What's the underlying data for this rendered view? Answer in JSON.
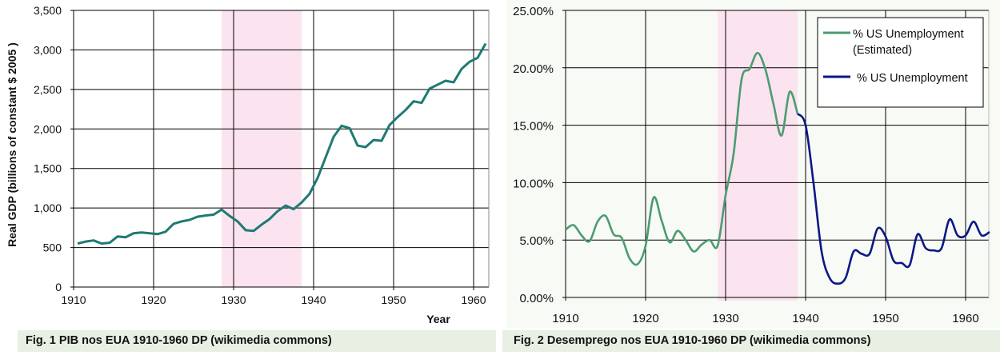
{
  "captions": {
    "fig1": "Fig. 1 PIB nos EUA 1910-1960 DP (wikimedia commons)",
    "fig2": "Fig. 2 Desemprego nos EUA 1910-1960 DP (wikimedia commons)"
  },
  "colors": {
    "gdp_line": "#1f7a72",
    "estimated_line": "#4b9c70",
    "actual_line": "#0b1787",
    "shading": "#fbe3f0",
    "chart2_bg": "#f8fbf5"
  },
  "chart_data": [
    {
      "type": "line",
      "title": "",
      "xlabel": "Year",
      "ylabel": "Real GDP (billions of constant $ 2005 )",
      "xlim": [
        1910,
        1962
      ],
      "ylim": [
        0,
        3500
      ],
      "xticks": [
        "1910",
        "1920",
        "1930",
        "1940",
        "1950",
        "1960"
      ],
      "yticks": [
        "0",
        "500",
        "1,000",
        "1,500",
        "2,000",
        "2,500",
        "3,000",
        "3,500"
      ],
      "grid": true,
      "shaded_region": [
        1928.5,
        1938.5
      ],
      "series": [
        {
          "x": [
            1910,
            1911,
            1912,
            1913,
            1914,
            1915,
            1916,
            1917,
            1918,
            1919,
            1920,
            1921,
            1922,
            1923,
            1924,
            1925,
            1926,
            1927,
            1928,
            1929,
            1930,
            1931,
            1932,
            1933,
            1934,
            1935,
            1936,
            1937,
            1938,
            1939,
            1940,
            1941,
            1942,
            1943,
            1944,
            1945,
            1946,
            1947,
            1948,
            1949,
            1950,
            1951,
            1952,
            1953,
            1954,
            1955,
            1956,
            1957,
            1958,
            1959,
            1960,
            1961
          ],
          "values": [
            550,
            575,
            590,
            550,
            560,
            640,
            630,
            680,
            690,
            680,
            670,
            700,
            800,
            830,
            850,
            890,
            905,
            915,
            980,
            900,
            830,
            720,
            710,
            790,
            860,
            960,
            1030,
            985,
            1070,
            1180,
            1380,
            1640,
            1900,
            2040,
            2010,
            1790,
            1770,
            1860,
            1850,
            2050,
            2150,
            2240,
            2350,
            2330,
            2510,
            2560,
            2610,
            2590,
            2760,
            2850,
            2900,
            3080
          ]
        }
      ]
    },
    {
      "type": "line",
      "title": "",
      "xlim": [
        1910,
        1963
      ],
      "ylim": [
        0,
        25
      ],
      "xticks": [
        "1910",
        "1920",
        "1930",
        "1940",
        "1950",
        "1960"
      ],
      "yticks": [
        "0.00%",
        "5.00%",
        "10.00%",
        "15.00%",
        "20.00%",
        "25.00%"
      ],
      "grid": true,
      "legend": "top-right",
      "shaded_region": [
        1929,
        1939
      ],
      "series": [
        {
          "name": "% US Unemployment (Estimated)",
          "name_line1": "% US Unemployment",
          "name_line2": "(Estimated)",
          "x": [
            1910,
            1911,
            1912,
            1913,
            1914,
            1915,
            1916,
            1917,
            1918,
            1919,
            1920,
            1921,
            1922,
            1923,
            1924,
            1925,
            1926,
            1927,
            1928,
            1929,
            1930,
            1931,
            1932,
            1933,
            1934,
            1935,
            1936,
            1937,
            1938,
            1939
          ],
          "values": [
            5.9,
            6.3,
            5.4,
            4.9,
            6.6,
            7.1,
            5.5,
            5.2,
            3.4,
            2.9,
            4.5,
            8.7,
            6.7,
            4.8,
            5.8,
            5.0,
            4.0,
            4.6,
            5.0,
            4.5,
            8.9,
            12.5,
            19.0,
            19.9,
            21.3,
            19.8,
            16.8,
            14.1,
            17.9,
            16.0
          ]
        },
        {
          "name": "% US Unemployment",
          "x": [
            1939,
            1940,
            1941,
            1942,
            1943,
            1944,
            1945,
            1946,
            1947,
            1948,
            1949,
            1950,
            1951,
            1952,
            1953,
            1954,
            1955,
            1956,
            1957,
            1958,
            1959,
            1960,
            1961,
            1962,
            1963
          ],
          "values": [
            16.0,
            15.0,
            9.9,
            4.0,
            1.7,
            1.2,
            1.7,
            4.0,
            3.8,
            3.8,
            6.0,
            5.3,
            3.2,
            3.0,
            2.8,
            5.5,
            4.3,
            4.1,
            4.3,
            6.8,
            5.4,
            5.4,
            6.6,
            5.4,
            5.7
          ]
        }
      ]
    }
  ]
}
